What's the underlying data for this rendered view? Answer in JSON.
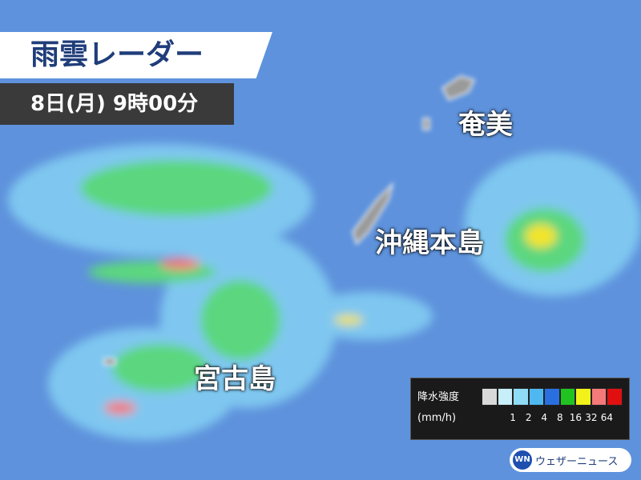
{
  "header": {
    "title": "雨雲レーダー",
    "time": "8日(月) 9時00分"
  },
  "places": [
    "奄美",
    "沖縄本島",
    "宮古島"
  ],
  "legend": {
    "title": "降水強度",
    "unit": "(mm/h)",
    "ticks": [
      "1",
      "2",
      "4",
      "8",
      "16",
      "32",
      "64"
    ],
    "colors": [
      "#d9d9d9",
      "#c8eefa",
      "#8fdcf7",
      "#4fb8f0",
      "#2a6fe0",
      "#21c321",
      "#f2f21a",
      "#f47a7a",
      "#e01010"
    ]
  },
  "brand": {
    "logo": "WN",
    "name": "ウェザーニュース"
  }
}
